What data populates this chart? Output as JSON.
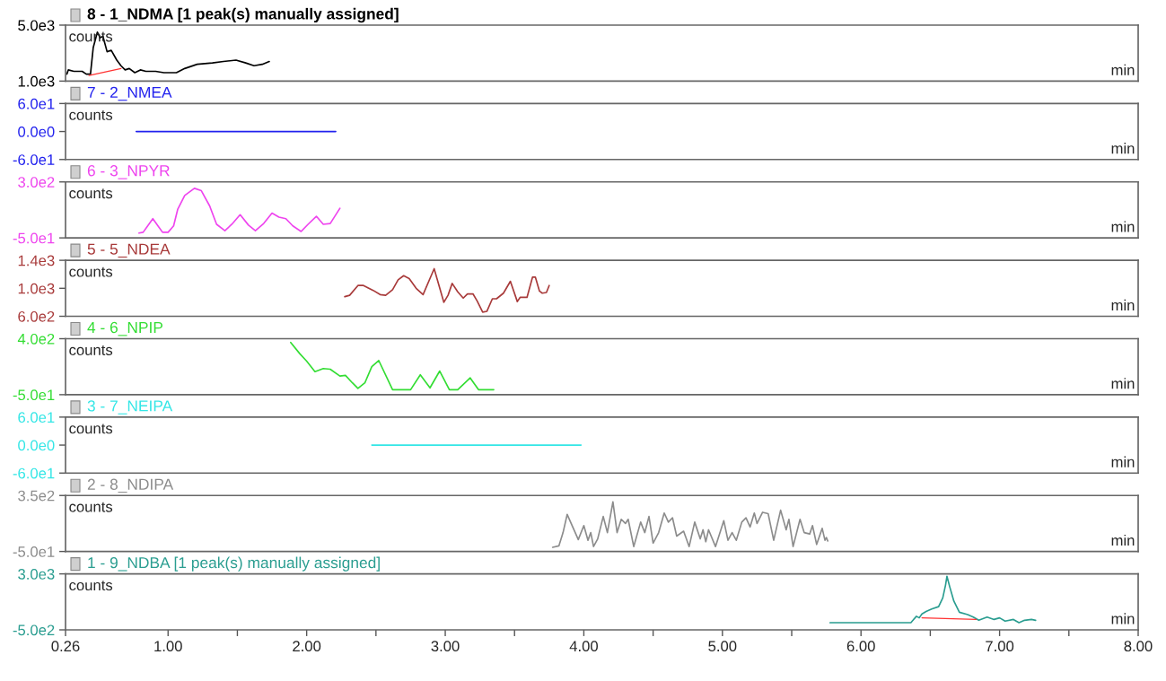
{
  "chart_data": [
    {
      "type": "line",
      "title": "8 - 1_NDMA [1 peak(s) manually assigned]",
      "xlabel": "min",
      "ylabel": "counts",
      "xlim": [
        0.26,
        8.0
      ],
      "ylim": [
        1000,
        5000
      ],
      "yticks": [
        {
          "value": 1000,
          "label": "1.0e3"
        },
        {
          "value": 5000,
          "label": "5.0e3"
        }
      ],
      "tick_labels": "y",
      "grid": false,
      "series": [
        {
          "color": "#000000",
          "x": [
            0.27,
            0.28,
            0.32,
            0.38,
            0.41,
            0.44,
            0.46,
            0.49,
            0.51,
            0.53,
            0.56,
            0.59,
            0.63,
            0.66,
            0.69,
            0.72,
            0.76,
            0.8,
            0.84,
            0.91,
            0.97,
            1.06,
            1.12,
            1.21,
            1.32,
            1.4,
            1.49,
            1.56,
            1.62,
            1.68,
            1.73
          ],
          "values": [
            1500,
            1800,
            1700,
            1700,
            1500,
            1500,
            3400,
            4500,
            4100,
            4200,
            3100,
            3200,
            2500,
            2100,
            1800,
            1900,
            1600,
            1800,
            1700,
            1700,
            1600,
            1600,
            1900,
            2200,
            2300,
            2400,
            2500,
            2300,
            2100,
            2200,
            2400
          ]
        },
        {
          "color": "#ff3333",
          "x": [
            0.43,
            0.66
          ],
          "values": [
            1400,
            1900
          ]
        }
      ]
    },
    {
      "type": "line",
      "title": "7 - 2_NMEA",
      "xlabel": "min",
      "ylabel": "counts",
      "xlim": [
        0.26,
        8.0
      ],
      "ylim": [
        -60,
        60
      ],
      "yticks": [
        {
          "value": -60,
          "label": "-6.0e1"
        },
        {
          "value": 0,
          "label": "0.0e0"
        },
        {
          "value": 60,
          "label": "6.0e1"
        }
      ],
      "tick_labels": "y",
      "grid": false,
      "series": [
        {
          "color": "#2222ee",
          "x": [
            0.77,
            2.21
          ],
          "values": [
            0,
            0
          ]
        }
      ]
    },
    {
      "type": "line",
      "title": "6 - 3_NPYR",
      "xlabel": "min",
      "ylabel": "counts",
      "xlim": [
        0.26,
        8.0
      ],
      "ylim": [
        -50,
        300
      ],
      "yticks": [
        {
          "value": -50,
          "label": "-5.0e1"
        },
        {
          "value": 300,
          "label": "3.0e2"
        }
      ],
      "tick_labels": "y",
      "grid": false,
      "series": [
        {
          "color": "#ee44ee",
          "x": [
            0.79,
            0.82,
            0.89,
            0.96,
            1.0,
            1.04,
            1.07,
            1.12,
            1.19,
            1.24,
            1.3,
            1.35,
            1.41,
            1.46,
            1.52,
            1.58,
            1.63,
            1.69,
            1.75,
            1.8,
            1.85,
            1.9,
            1.96,
            2.01,
            2.07,
            2.12,
            2.17,
            2.24
          ],
          "values": [
            -20,
            -15,
            70,
            -15,
            -15,
            25,
            130,
            215,
            260,
            245,
            150,
            35,
            -5,
            35,
            95,
            30,
            -5,
            40,
            105,
            80,
            70,
            25,
            -10,
            35,
            85,
            35,
            40,
            135
          ]
        }
      ]
    },
    {
      "type": "line",
      "title": "5 - 5_NDEA",
      "xlabel": "min",
      "ylabel": "counts",
      "xlim": [
        0.26,
        8.0
      ],
      "ylim": [
        600,
        1400
      ],
      "yticks": [
        {
          "value": 600,
          "label": "6.0e2"
        },
        {
          "value": 1000,
          "label": "1.0e3"
        },
        {
          "value": 1400,
          "label": "1.4e3"
        }
      ],
      "tick_labels": "y",
      "grid": false,
      "series": [
        {
          "color": "#a83a3a",
          "x": [
            2.275,
            2.31,
            2.37,
            2.41,
            2.48,
            2.53,
            2.57,
            2.62,
            2.66,
            2.7,
            2.74,
            2.79,
            2.84,
            2.92,
            2.99,
            3.02,
            3.05,
            3.09,
            3.13,
            3.16,
            3.2,
            3.23,
            3.27,
            3.3,
            3.34,
            3.37,
            3.42,
            3.47,
            3.52,
            3.54,
            3.59,
            3.63,
            3.65,
            3.68,
            3.7,
            3.73,
            3.75
          ],
          "values": [
            880,
            900,
            1040,
            1040,
            970,
            910,
            900,
            980,
            1120,
            1180,
            1140,
            1000,
            910,
            1280,
            800,
            900,
            1070,
            950,
            860,
            920,
            920,
            820,
            660,
            670,
            850,
            850,
            930,
            1100,
            810,
            870,
            870,
            1160,
            1160,
            960,
            930,
            940,
            1040
          ]
        }
      ]
    },
    {
      "type": "line",
      "title": "4 - 6_NPIP",
      "xlabel": "min",
      "ylabel": "counts",
      "xlim": [
        0.26,
        8.0
      ],
      "ylim": [
        -50,
        400
      ],
      "yticks": [
        {
          "value": -50,
          "label": "-5.0e1"
        },
        {
          "value": 400,
          "label": "4.0e2"
        }
      ],
      "tick_labels": "y",
      "grid": false,
      "series": [
        {
          "color": "#33dd33",
          "x": [
            1.885,
            1.95,
            2.0,
            2.06,
            2.12,
            2.17,
            2.24,
            2.28,
            2.33,
            2.37,
            2.42,
            2.47,
            2.52,
            2.62,
            2.75,
            2.82,
            2.89,
            2.96,
            3.03,
            3.09,
            3.18,
            3.24,
            3.35
          ],
          "values": [
            370,
            280,
            220,
            135,
            160,
            155,
            100,
            105,
            45,
            0,
            45,
            175,
            225,
            -10,
            -10,
            110,
            5,
            140,
            -10,
            -10,
            85,
            -10,
            -10
          ]
        }
      ]
    },
    {
      "type": "line",
      "title": "3 - 7_NEIPA",
      "xlabel": "min",
      "ylabel": "counts",
      "xlim": [
        0.26,
        8.0
      ],
      "ylim": [
        -60,
        60
      ],
      "yticks": [
        {
          "value": -60,
          "label": "-6.0e1"
        },
        {
          "value": 0,
          "label": "0.0e0"
        },
        {
          "value": 60,
          "label": "6.0e1"
        }
      ],
      "tick_labels": "y",
      "grid": false,
      "series": [
        {
          "color": "#33e6e6",
          "x": [
            2.47,
            3.98
          ],
          "values": [
            0,
            0
          ]
        }
      ]
    },
    {
      "type": "line",
      "title": "2 - 8_NDIPA",
      "xlabel": "min",
      "ylabel": "counts",
      "xlim": [
        0.26,
        8.0
      ],
      "ylim": [
        -50,
        350
      ],
      "yticks": [
        {
          "value": -50,
          "label": "-5.0e1"
        },
        {
          "value": 350,
          "label": "3.5e2"
        }
      ],
      "tick_labels": "y",
      "grid": false,
      "series": [
        {
          "color": "#8c8c8c",
          "x": [
            3.775,
            3.82,
            3.85,
            3.88,
            3.92,
            3.96,
            4.0,
            4.03,
            4.05,
            4.07,
            4.1,
            4.14,
            4.17,
            4.21,
            4.24,
            4.27,
            4.3,
            4.32,
            4.36,
            4.41,
            4.44,
            4.47,
            4.5,
            4.54,
            4.58,
            4.61,
            4.64,
            4.67,
            4.72,
            4.76,
            4.8,
            4.84,
            4.86,
            4.88,
            4.9,
            4.95,
            5.01,
            5.04,
            5.07,
            5.1,
            5.14,
            5.17,
            5.2,
            5.23,
            5.25,
            5.29,
            5.33,
            5.37,
            5.42,
            5.46,
            5.48,
            5.51,
            5.56,
            5.59,
            5.63,
            5.65,
            5.68,
            5.72,
            5.74,
            5.75,
            5.76
          ],
          "values": [
            -20,
            -10,
            85,
            215,
            125,
            35,
            135,
            30,
            85,
            -15,
            40,
            200,
            85,
            305,
            85,
            180,
            150,
            180,
            -15,
            160,
            85,
            200,
            10,
            85,
            225,
            160,
            190,
            60,
            95,
            -15,
            160,
            40,
            105,
            20,
            105,
            -15,
            170,
            30,
            85,
            30,
            160,
            190,
            125,
            225,
            150,
            230,
            220,
            30,
            245,
            105,
            180,
            -15,
            180,
            85,
            75,
            135,
            0,
            115,
            30,
            50,
            25
          ]
        }
      ]
    },
    {
      "type": "line",
      "title": "1 - 9_NDBA [1 peak(s) manually assigned]",
      "xlabel": "min",
      "ylabel": "counts",
      "xlim": [
        0.26,
        8.0
      ],
      "xticks": [
        {
          "value": 0.26,
          "label": "0.26"
        },
        {
          "value": 1,
          "label": "1.00"
        },
        {
          "value": 1.5,
          "label": null
        },
        {
          "value": 2,
          "label": "2.00"
        },
        {
          "value": 2.5,
          "label": null
        },
        {
          "value": 3,
          "label": "3.00"
        },
        {
          "value": 3.5,
          "label": null
        },
        {
          "value": 4,
          "label": "4.00"
        },
        {
          "value": 4.5,
          "label": null
        },
        {
          "value": 5,
          "label": "5.00"
        },
        {
          "value": 5.5,
          "label": null
        },
        {
          "value": 6,
          "label": "6.00"
        },
        {
          "value": 6.5,
          "label": null
        },
        {
          "value": 7,
          "label": "7.00"
        },
        {
          "value": 7.5,
          "label": null
        },
        {
          "value": 8,
          "label": "8.00"
        }
      ],
      "ylim": [
        -500,
        3000
      ],
      "yticks": [
        {
          "value": -500,
          "label": "-5.0e2"
        },
        {
          "value": 3000,
          "label": "3.0e3"
        }
      ],
      "grid": false,
      "series": [
        {
          "color": "#2a9d90",
          "x": [
            5.777,
            6.36,
            6.4,
            6.42,
            6.44,
            6.47,
            6.51,
            6.56,
            6.59,
            6.61,
            6.62,
            6.64,
            6.67,
            6.71,
            6.77,
            6.81,
            6.85,
            6.88,
            6.91,
            6.96,
            7.0,
            7.04,
            7.1,
            7.14,
            7.18,
            7.23,
            7.26
          ],
          "values": [
            -50,
            -50,
            350,
            250,
            500,
            650,
            800,
            950,
            1500,
            2300,
            2850,
            2200,
            1300,
            600,
            450,
            300,
            100,
            200,
            300,
            150,
            250,
            50,
            150,
            -50,
            100,
            150,
            100
          ]
        },
        {
          "color": "#ff3333",
          "x": [
            6.44,
            6.83
          ],
          "values": [
            250,
            150
          ]
        }
      ]
    }
  ]
}
